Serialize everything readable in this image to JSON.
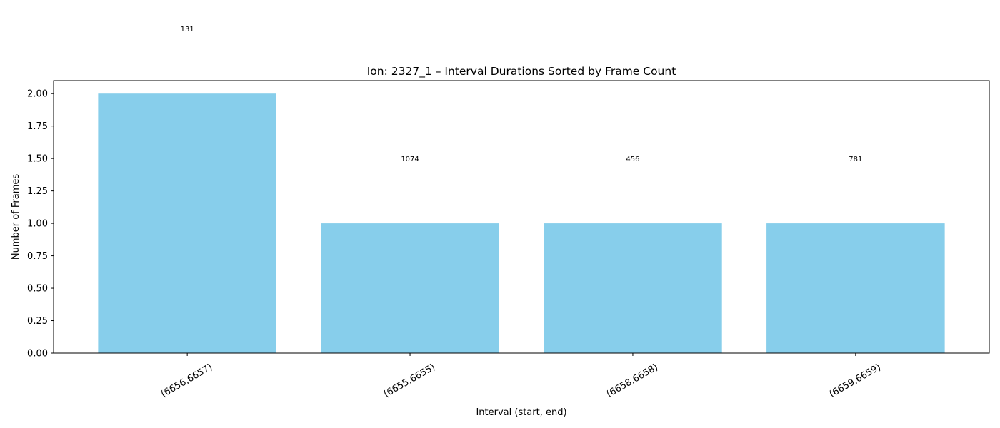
{
  "chart_data": {
    "type": "bar",
    "title": "Ion: 2327_1 – Interval Durations Sorted by Frame Count",
    "xlabel": "Interval (start, end)",
    "ylabel": "Number of Frames",
    "categories": [
      "(6656,6657)",
      "(6655,6655)",
      "(6658,6658)",
      "(6659,6659)"
    ],
    "values": [
      2,
      1,
      1,
      1
    ],
    "annotations": [
      {
        "text": "131",
        "y": 2.5
      },
      {
        "text": "1074",
        "y": 1.5
      },
      {
        "text": "456",
        "y": 1.5
      },
      {
        "text": "781",
        "y": 1.5
      }
    ],
    "ylim": [
      0,
      2.1
    ],
    "yticks": [
      0.0,
      0.25,
      0.5,
      0.75,
      1.0,
      1.25,
      1.5,
      1.75,
      2.0
    ],
    "ytick_labels": [
      "0.00",
      "0.25",
      "0.50",
      "0.75",
      "1.00",
      "1.25",
      "1.50",
      "1.75",
      "2.00"
    ],
    "grid": false,
    "legend": "none",
    "bar_color": "#87CEEB"
  }
}
